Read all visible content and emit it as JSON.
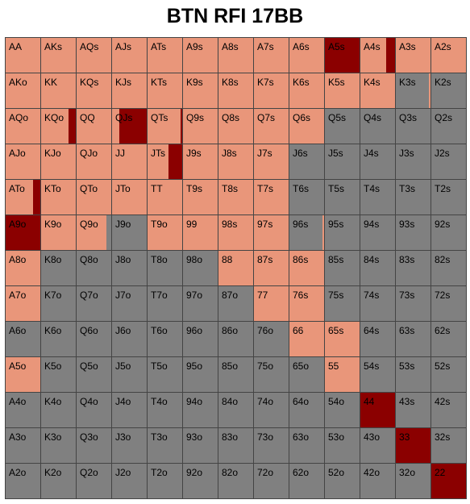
{
  "title": "BTN RFI 17BB",
  "colors": {
    "raise": "#E9967A",
    "fold": "#808080",
    "allin": "#8B0000",
    "border": "#444444"
  },
  "ranks": [
    "A",
    "K",
    "Q",
    "J",
    "T",
    "9",
    "8",
    "7",
    "6",
    "5",
    "4",
    "3",
    "2"
  ],
  "hands": [
    {
      "label": "AA",
      "action": "raise"
    },
    {
      "label": "AKs",
      "action": "raise"
    },
    {
      "label": "AQs",
      "action": "raise"
    },
    {
      "label": "AJs",
      "action": "raise"
    },
    {
      "label": "ATs",
      "action": "raise"
    },
    {
      "label": "A9s",
      "action": "raise"
    },
    {
      "label": "A8s",
      "action": "raise"
    },
    {
      "label": "A7s",
      "action": "raise"
    },
    {
      "label": "A6s",
      "action": "raise"
    },
    {
      "label": "A5s",
      "action": "allin"
    },
    {
      "label": "A4s",
      "action": "raise",
      "allin_fraction": 0.25
    },
    {
      "label": "A3s",
      "action": "raise"
    },
    {
      "label": "A2s",
      "action": "raise"
    },
    {
      "label": "AKo",
      "action": "raise"
    },
    {
      "label": "KK",
      "action": "raise"
    },
    {
      "label": "KQs",
      "action": "raise"
    },
    {
      "label": "KJs",
      "action": "raise"
    },
    {
      "label": "KTs",
      "action": "raise"
    },
    {
      "label": "K9s",
      "action": "raise"
    },
    {
      "label": "K8s",
      "action": "raise"
    },
    {
      "label": "K7s",
      "action": "raise"
    },
    {
      "label": "K6s",
      "action": "raise"
    },
    {
      "label": "K5s",
      "action": "raise"
    },
    {
      "label": "K4s",
      "action": "raise"
    },
    {
      "label": "K3s",
      "action": "fold",
      "raise_fraction": 0.05
    },
    {
      "label": "K2s",
      "action": "fold"
    },
    {
      "label": "AQo",
      "action": "raise"
    },
    {
      "label": "KQo",
      "action": "raise",
      "allin_fraction": 0.2
    },
    {
      "label": "QQ",
      "action": "raise"
    },
    {
      "label": "QJs",
      "action": "raise",
      "allin_fraction": 0.8
    },
    {
      "label": "QTs",
      "action": "raise",
      "allin_fraction": 0.05
    },
    {
      "label": "Q9s",
      "action": "raise"
    },
    {
      "label": "Q8s",
      "action": "raise"
    },
    {
      "label": "Q7s",
      "action": "raise"
    },
    {
      "label": "Q6s",
      "action": "raise"
    },
    {
      "label": "Q5s",
      "action": "fold"
    },
    {
      "label": "Q4s",
      "action": "fold"
    },
    {
      "label": "Q3s",
      "action": "fold"
    },
    {
      "label": "Q2s",
      "action": "fold"
    },
    {
      "label": "AJo",
      "action": "raise"
    },
    {
      "label": "KJo",
      "action": "raise"
    },
    {
      "label": "QJo",
      "action": "raise"
    },
    {
      "label": "JJ",
      "action": "raise"
    },
    {
      "label": "JTs",
      "action": "raise",
      "allin_fraction": 0.4
    },
    {
      "label": "J9s",
      "action": "raise"
    },
    {
      "label": "J8s",
      "action": "raise"
    },
    {
      "label": "J7s",
      "action": "raise"
    },
    {
      "label": "J6s",
      "action": "fold"
    },
    {
      "label": "J5s",
      "action": "fold"
    },
    {
      "label": "J4s",
      "action": "fold"
    },
    {
      "label": "J3s",
      "action": "fold"
    },
    {
      "label": "J2s",
      "action": "fold"
    },
    {
      "label": "ATo",
      "action": "raise",
      "allin_fraction": 0.2
    },
    {
      "label": "KTo",
      "action": "raise"
    },
    {
      "label": "QTo",
      "action": "raise"
    },
    {
      "label": "JTo",
      "action": "raise"
    },
    {
      "label": "TT",
      "action": "raise"
    },
    {
      "label": "T9s",
      "action": "raise"
    },
    {
      "label": "T8s",
      "action": "raise"
    },
    {
      "label": "T7s",
      "action": "raise"
    },
    {
      "label": "T6s",
      "action": "fold"
    },
    {
      "label": "T5s",
      "action": "fold"
    },
    {
      "label": "T4s",
      "action": "fold"
    },
    {
      "label": "T3s",
      "action": "fold"
    },
    {
      "label": "T2s",
      "action": "fold"
    },
    {
      "label": "A9o",
      "action": "allin"
    },
    {
      "label": "K9o",
      "action": "raise"
    },
    {
      "label": "Q9o",
      "action": "raise",
      "fold_fraction": 0.15
    },
    {
      "label": "J9o",
      "action": "fold"
    },
    {
      "label": "T9o",
      "action": "raise"
    },
    {
      "label": "99",
      "action": "raise"
    },
    {
      "label": "98s",
      "action": "raise"
    },
    {
      "label": "97s",
      "action": "raise"
    },
    {
      "label": "96s",
      "action": "fold",
      "raise_fraction": 0.05
    },
    {
      "label": "95s",
      "action": "fold"
    },
    {
      "label": "94s",
      "action": "fold"
    },
    {
      "label": "93s",
      "action": "fold"
    },
    {
      "label": "92s",
      "action": "fold"
    },
    {
      "label": "A8o",
      "action": "raise"
    },
    {
      "label": "K8o",
      "action": "fold"
    },
    {
      "label": "Q8o",
      "action": "fold"
    },
    {
      "label": "J8o",
      "action": "fold"
    },
    {
      "label": "T8o",
      "action": "fold"
    },
    {
      "label": "98o",
      "action": "fold"
    },
    {
      "label": "88",
      "action": "raise"
    },
    {
      "label": "87s",
      "action": "raise"
    },
    {
      "label": "86s",
      "action": "raise"
    },
    {
      "label": "85s",
      "action": "fold"
    },
    {
      "label": "84s",
      "action": "fold"
    },
    {
      "label": "83s",
      "action": "fold"
    },
    {
      "label": "82s",
      "action": "fold"
    },
    {
      "label": "A7o",
      "action": "raise"
    },
    {
      "label": "K7o",
      "action": "fold"
    },
    {
      "label": "Q7o",
      "action": "fold"
    },
    {
      "label": "J7o",
      "action": "fold"
    },
    {
      "label": "T7o",
      "action": "fold"
    },
    {
      "label": "97o",
      "action": "fold"
    },
    {
      "label": "87o",
      "action": "fold"
    },
    {
      "label": "77",
      "action": "raise"
    },
    {
      "label": "76s",
      "action": "raise"
    },
    {
      "label": "75s",
      "action": "fold"
    },
    {
      "label": "74s",
      "action": "fold"
    },
    {
      "label": "73s",
      "action": "fold"
    },
    {
      "label": "72s",
      "action": "fold"
    },
    {
      "label": "A6o",
      "action": "fold"
    },
    {
      "label": "K6o",
      "action": "fold"
    },
    {
      "label": "Q6o",
      "action": "fold"
    },
    {
      "label": "J6o",
      "action": "fold"
    },
    {
      "label": "T6o",
      "action": "fold"
    },
    {
      "label": "96o",
      "action": "fold"
    },
    {
      "label": "86o",
      "action": "fold"
    },
    {
      "label": "76o",
      "action": "fold"
    },
    {
      "label": "66",
      "action": "raise"
    },
    {
      "label": "65s",
      "action": "raise"
    },
    {
      "label": "64s",
      "action": "fold"
    },
    {
      "label": "63s",
      "action": "fold"
    },
    {
      "label": "62s",
      "action": "fold"
    },
    {
      "label": "A5o",
      "action": "raise"
    },
    {
      "label": "K5o",
      "action": "fold"
    },
    {
      "label": "Q5o",
      "action": "fold"
    },
    {
      "label": "J5o",
      "action": "fold"
    },
    {
      "label": "T5o",
      "action": "fold"
    },
    {
      "label": "95o",
      "action": "fold"
    },
    {
      "label": "85o",
      "action": "fold"
    },
    {
      "label": "75o",
      "action": "fold"
    },
    {
      "label": "65o",
      "action": "fold"
    },
    {
      "label": "55",
      "action": "raise"
    },
    {
      "label": "54s",
      "action": "fold"
    },
    {
      "label": "53s",
      "action": "fold"
    },
    {
      "label": "52s",
      "action": "fold"
    },
    {
      "label": "A4o",
      "action": "fold"
    },
    {
      "label": "K4o",
      "action": "fold"
    },
    {
      "label": "Q4o",
      "action": "fold"
    },
    {
      "label": "J4o",
      "action": "fold"
    },
    {
      "label": "T4o",
      "action": "fold"
    },
    {
      "label": "94o",
      "action": "fold"
    },
    {
      "label": "84o",
      "action": "fold"
    },
    {
      "label": "74o",
      "action": "fold"
    },
    {
      "label": "64o",
      "action": "fold"
    },
    {
      "label": "54o",
      "action": "fold"
    },
    {
      "label": "44",
      "action": "allin"
    },
    {
      "label": "43s",
      "action": "fold"
    },
    {
      "label": "42s",
      "action": "fold"
    },
    {
      "label": "A3o",
      "action": "fold"
    },
    {
      "label": "K3o",
      "action": "fold"
    },
    {
      "label": "Q3o",
      "action": "fold"
    },
    {
      "label": "J3o",
      "action": "fold"
    },
    {
      "label": "T3o",
      "action": "fold"
    },
    {
      "label": "93o",
      "action": "fold"
    },
    {
      "label": "83o",
      "action": "fold"
    },
    {
      "label": "73o",
      "action": "fold"
    },
    {
      "label": "63o",
      "action": "fold"
    },
    {
      "label": "53o",
      "action": "fold"
    },
    {
      "label": "43o",
      "action": "fold"
    },
    {
      "label": "33",
      "action": "allin"
    },
    {
      "label": "32s",
      "action": "fold"
    },
    {
      "label": "A2o",
      "action": "fold"
    },
    {
      "label": "K2o",
      "action": "fold"
    },
    {
      "label": "Q2o",
      "action": "fold"
    },
    {
      "label": "J2o",
      "action": "fold"
    },
    {
      "label": "T2o",
      "action": "fold"
    },
    {
      "label": "92o",
      "action": "fold"
    },
    {
      "label": "82o",
      "action": "fold"
    },
    {
      "label": "72o",
      "action": "fold"
    },
    {
      "label": "62o",
      "action": "fold"
    },
    {
      "label": "52o",
      "action": "fold"
    },
    {
      "label": "42o",
      "action": "fold"
    },
    {
      "label": "32o",
      "action": "fold"
    },
    {
      "label": "22",
      "action": "allin"
    }
  ]
}
